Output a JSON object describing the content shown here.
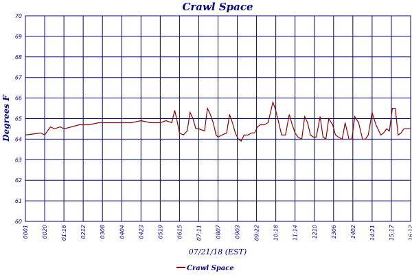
{
  "chart_data": {
    "type": "line",
    "title": "Crawl Space",
    "xlabel": "07/21/18 (EST)",
    "ylabel": "Degrees F",
    "ylim": [
      60,
      70
    ],
    "y_ticks": [
      "60",
      "61",
      "62",
      "63",
      "64",
      "65",
      "66",
      "67",
      "68",
      "69",
      "70"
    ],
    "x_ticks": [
      "0001",
      "0020",
      "01:16",
      "0212",
      "0308",
      "0404",
      "0423",
      "0519",
      "0615",
      "07:11",
      "0807",
      "0903",
      "09:22",
      "10:18",
      "11:14",
      "1210",
      "1306",
      "1402",
      "14:21",
      "15:17",
      "16:12"
    ],
    "grid": true,
    "legend_position": "bottom-center",
    "line_color": "#8b0000",
    "grid_color": "#000080",
    "series": [
      {
        "name": "Crawl Space",
        "x": [
          0.0,
          0.8,
          1.0,
          1.3,
          1.5,
          1.8,
          2.0,
          2.4,
          2.8,
          3.3,
          3.8,
          4.3,
          4.7,
          5.0,
          5.5,
          6.0,
          6.5,
          7.0,
          7.3,
          7.6,
          7.75,
          7.85,
          8.0,
          8.2,
          8.4,
          8.55,
          8.7,
          8.85,
          9.0,
          9.3,
          9.45,
          9.6,
          9.75,
          9.9,
          10.0,
          10.2,
          10.45,
          10.6,
          10.75,
          10.9,
          11.05,
          11.2,
          11.35,
          11.55,
          11.75,
          11.9,
          12.05,
          12.2,
          12.4,
          12.6,
          12.85,
          13.0,
          13.15,
          13.3,
          13.5,
          13.7,
          13.85,
          14.0,
          14.15,
          14.35,
          14.5,
          14.65,
          14.8,
          14.95,
          15.1,
          15.3,
          15.45,
          15.6,
          15.75,
          15.95,
          16.1,
          16.25,
          16.45,
          16.6,
          16.8,
          16.95,
          17.1,
          17.3,
          17.5,
          17.65,
          17.8,
          18.0,
          18.2,
          18.45,
          18.6,
          18.75,
          18.9,
          19.05,
          19.2,
          19.35,
          19.5,
          19.65,
          19.8,
          19.95,
          20.0
        ],
        "values": [
          64.2,
          64.3,
          64.2,
          64.6,
          64.5,
          64.6,
          64.5,
          64.6,
          64.7,
          64.7,
          64.8,
          64.8,
          64.8,
          64.8,
          64.8,
          64.9,
          64.8,
          64.8,
          64.9,
          64.8,
          65.4,
          65.0,
          64.3,
          64.2,
          64.4,
          65.3,
          65.0,
          64.5,
          64.5,
          64.4,
          65.5,
          65.2,
          64.8,
          64.2,
          64.1,
          64.2,
          64.3,
          65.2,
          64.8,
          64.3,
          64.0,
          63.9,
          64.2,
          64.2,
          64.3,
          64.3,
          64.6,
          64.7,
          64.7,
          64.8,
          65.8,
          65.4,
          64.8,
          64.2,
          64.2,
          65.2,
          64.7,
          64.3,
          64.1,
          64.0,
          65.1,
          64.8,
          64.2,
          64.1,
          64.1,
          65.1,
          64.1,
          64.0,
          65.0,
          64.7,
          64.2,
          64.1,
          64.0,
          64.8,
          64.0,
          64.0,
          65.1,
          64.8,
          64.0,
          64.0,
          64.2,
          65.3,
          64.7,
          64.2,
          64.3,
          64.5,
          64.4,
          65.5,
          65.5,
          64.2,
          64.3,
          64.5,
          64.5,
          64.5,
          64.5
        ]
      }
    ]
  }
}
